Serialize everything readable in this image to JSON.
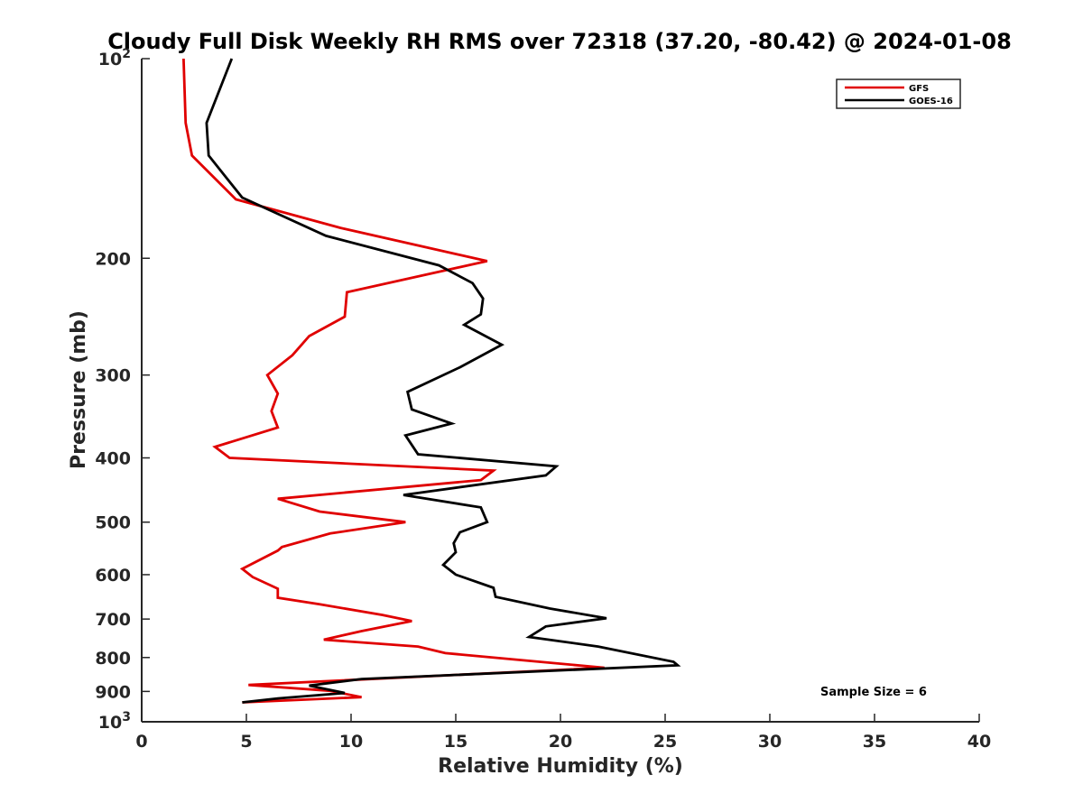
{
  "chart_data": {
    "type": "line",
    "title": "Cloudy Full Disk Weekly RH RMS over 72318 (37.20, -80.42) @ 2024-01-08",
    "xlabel": "Relative Humidity (%)",
    "ylabel": "Pressure (mb)",
    "xlim": [
      0,
      40
    ],
    "ylim": [
      100,
      1000
    ],
    "yscale": "log",
    "y_reversed": true,
    "x_ticks": [
      "0",
      "5",
      "10",
      "15",
      "20",
      "25",
      "30",
      "35",
      "40"
    ],
    "y_ticks": [
      {
        "value": 100,
        "base": "10",
        "exp": "2"
      },
      {
        "value": 200,
        "label": "200"
      },
      {
        "value": 300,
        "label": "300"
      },
      {
        "value": 400,
        "label": "400"
      },
      {
        "value": 500,
        "label": "500"
      },
      {
        "value": 600,
        "label": "600"
      },
      {
        "value": 700,
        "label": "700"
      },
      {
        "value": 800,
        "label": "800"
      },
      {
        "value": 900,
        "label": "900"
      },
      {
        "value": 1000,
        "base": "10",
        "exp": "3"
      }
    ],
    "legend_position": "top-right",
    "annotation": "Sample Size = 6",
    "series": [
      {
        "name": "GFS",
        "color": "#e00000",
        "points": [
          [
            2.0,
            100
          ],
          [
            2.1,
            125
          ],
          [
            2.4,
            140
          ],
          [
            4.5,
            163
          ],
          [
            9.5,
            180
          ],
          [
            16.5,
            202
          ],
          [
            9.8,
            225
          ],
          [
            9.7,
            245
          ],
          [
            8.0,
            262
          ],
          [
            7.2,
            280
          ],
          [
            6.0,
            300
          ],
          [
            6.5,
            320
          ],
          [
            6.2,
            340
          ],
          [
            6.5,
            360
          ],
          [
            3.5,
            385
          ],
          [
            4.2,
            400
          ],
          [
            16.8,
            418
          ],
          [
            16.2,
            432
          ],
          [
            6.5,
            461
          ],
          [
            8.5,
            482
          ],
          [
            12.6,
            500
          ],
          [
            9.0,
            520
          ],
          [
            6.7,
            545
          ],
          [
            6.5,
            552
          ],
          [
            4.8,
            588
          ],
          [
            5.3,
            605
          ],
          [
            6.5,
            630
          ],
          [
            6.5,
            650
          ],
          [
            8.5,
            665
          ],
          [
            11.5,
            690
          ],
          [
            12.9,
            705
          ],
          [
            10.5,
            730
          ],
          [
            8.7,
            752
          ],
          [
            13.2,
            770
          ],
          [
            14.5,
            788
          ],
          [
            22.1,
            829
          ],
          [
            5.1,
            880
          ],
          [
            9.0,
            898
          ],
          [
            10.5,
            918
          ],
          [
            4.8,
            935
          ]
        ]
      },
      {
        "name": "GOES-16",
        "color": "#000000",
        "points": [
          [
            4.3,
            100
          ],
          [
            3.1,
            125
          ],
          [
            3.2,
            140
          ],
          [
            4.8,
            162
          ],
          [
            8.8,
            185
          ],
          [
            14.2,
            205
          ],
          [
            15.8,
            218
          ],
          [
            16.3,
            230
          ],
          [
            16.2,
            243
          ],
          [
            15.4,
            252
          ],
          [
            17.2,
            270
          ],
          [
            15.2,
            292
          ],
          [
            12.7,
            318
          ],
          [
            12.9,
            338
          ],
          [
            14.8,
            355
          ],
          [
            12.6,
            370
          ],
          [
            13.2,
            395
          ],
          [
            19.8,
            412
          ],
          [
            19.3,
            425
          ],
          [
            12.5,
            455
          ],
          [
            16.2,
            475
          ],
          [
            16.5,
            500
          ],
          [
            15.2,
            518
          ],
          [
            14.9,
            538
          ],
          [
            15.0,
            555
          ],
          [
            14.4,
            580
          ],
          [
            15.0,
            600
          ],
          [
            16.8,
            628
          ],
          [
            16.9,
            648
          ],
          [
            19.5,
            675
          ],
          [
            22.2,
            698
          ],
          [
            19.3,
            718
          ],
          [
            18.5,
            745
          ],
          [
            21.8,
            770
          ],
          [
            25.4,
            812
          ],
          [
            25.6,
            822
          ],
          [
            10.5,
            862
          ],
          [
            8.0,
            882
          ],
          [
            9.7,
            905
          ],
          [
            6.5,
            922
          ],
          [
            4.8,
            935
          ]
        ]
      }
    ]
  }
}
